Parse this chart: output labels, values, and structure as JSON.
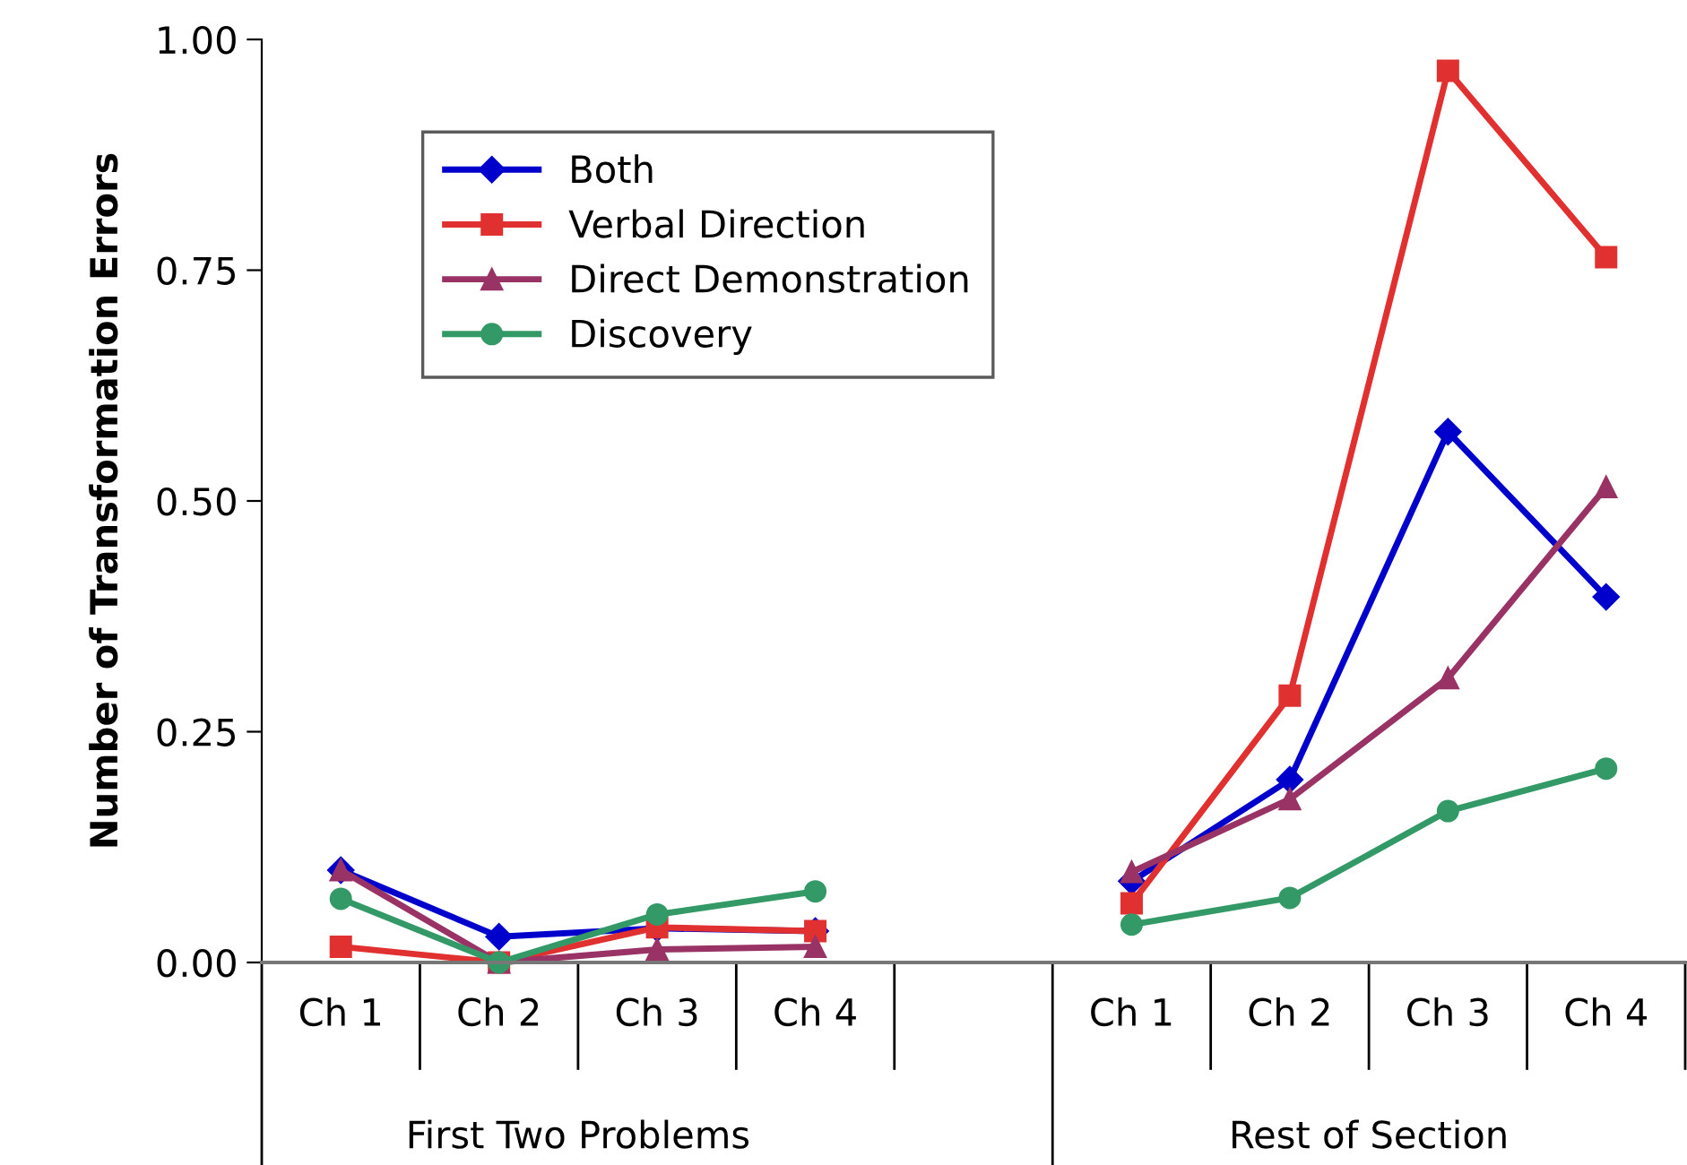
{
  "chart_data": {
    "type": "line",
    "ylabel": "Number of Transformation Errors",
    "categories": [
      "Ch 1",
      "Ch 2",
      "Ch 3",
      "Ch 4",
      null,
      "Ch 1",
      "Ch 2",
      "Ch 3",
      "Ch 4"
    ],
    "series": [
      {
        "name": "Both",
        "color": "#0000cc",
        "marker": "diamond",
        "values": [
          0.1,
          0.028,
          0.037,
          0.034,
          null,
          0.088,
          0.198,
          0.575,
          0.396
        ]
      },
      {
        "name": "Verbal Direction",
        "color": "#e03030",
        "marker": "square",
        "values": [
          0.017,
          0.0,
          0.038,
          0.034,
          null,
          0.064,
          0.289,
          0.966,
          0.764
        ]
      },
      {
        "name": "Direct Demonstration",
        "color": "#993366",
        "marker": "triangle",
        "values": [
          0.1,
          0.0,
          0.014,
          0.017,
          null,
          0.098,
          0.177,
          0.308,
          0.515
        ]
      },
      {
        "name": "Discovery",
        "color": "#339966",
        "marker": "circle",
        "values": [
          0.069,
          0.0,
          0.052,
          0.077,
          null,
          0.041,
          0.07,
          0.164,
          0.21
        ]
      }
    ],
    "ylim": [
      0,
      1.0
    ],
    "yticks": [
      {
        "value": 0,
        "label": "0.00"
      },
      {
        "value": 0.25,
        "label": "0.25"
      },
      {
        "value": 0.5,
        "label": "0.50"
      },
      {
        "value": 0.75,
        "label": "0.75"
      },
      {
        "value": 1.0,
        "label": "1.00"
      }
    ],
    "annotations": [
      "First Two Problems",
      "Rest of Section"
    ],
    "grid": false,
    "legend": "top left",
    "line_style": "solid"
  }
}
